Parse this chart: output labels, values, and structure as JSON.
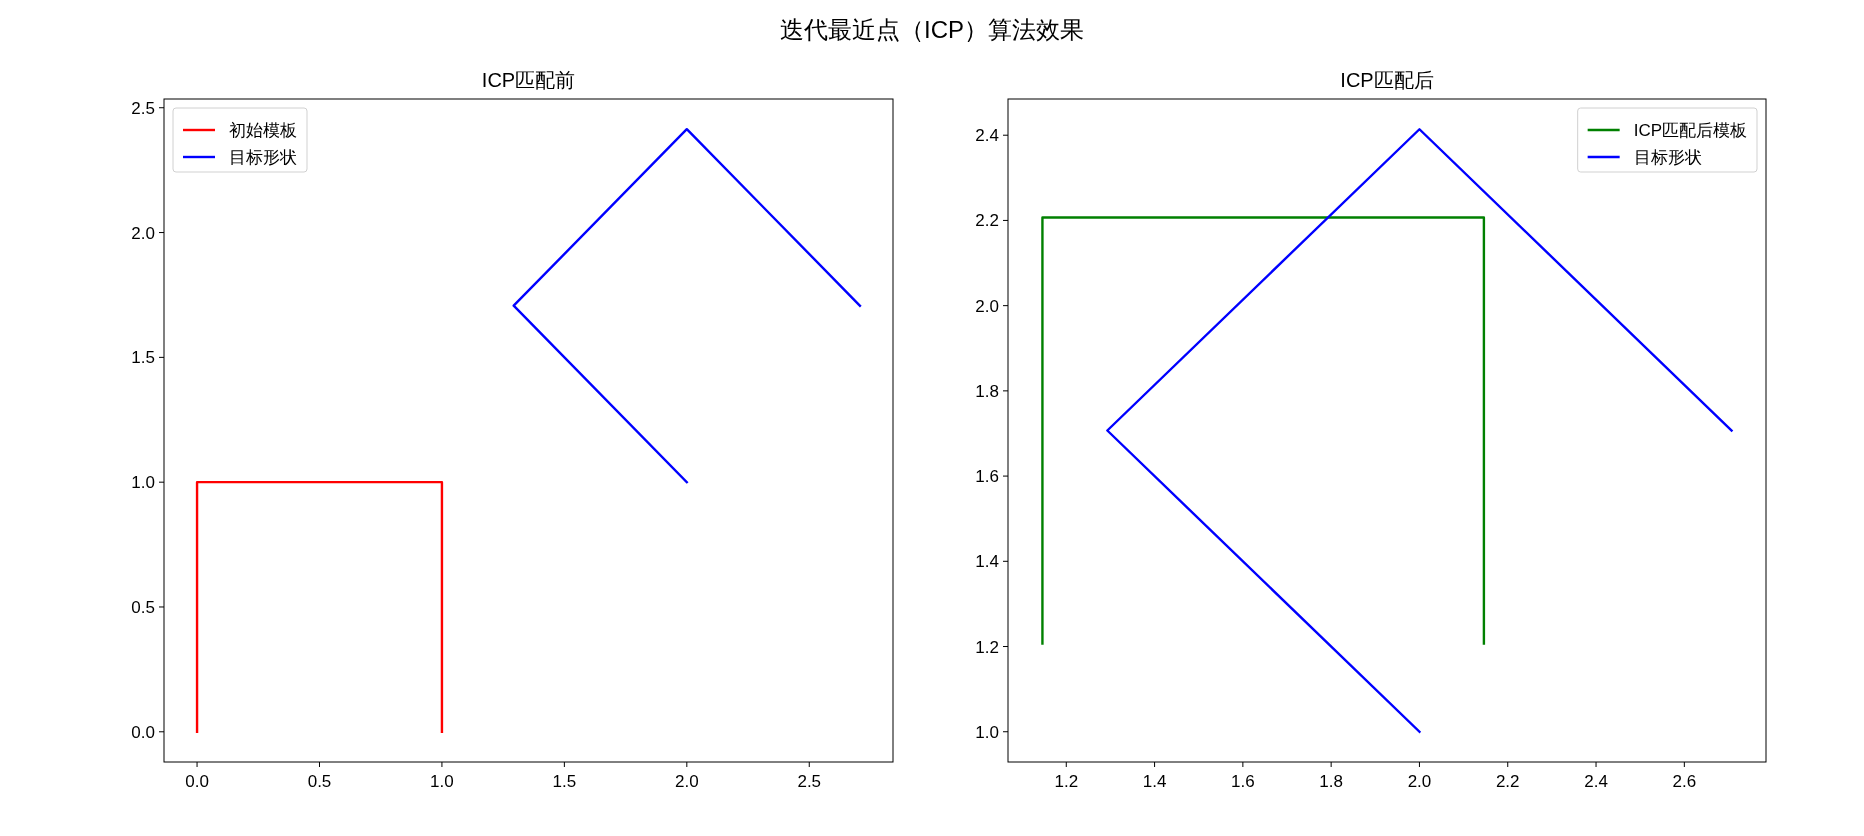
{
  "chart_data": [
    {
      "type": "line",
      "title": "ICP匹配前",
      "annotations": [
        "迭代最近点（ICP）算法效果"
      ],
      "legend": "top left",
      "grid": false,
      "xlim": [
        -0.135,
        2.842
      ],
      "ylim": [
        -0.121,
        2.535
      ],
      "xticks": [
        {
          "value": 0,
          "label": "0.0"
        },
        0.5,
        {
          "value": 1,
          "label": "1.0"
        },
        1.5,
        {
          "value": 2,
          "label": "2.0"
        },
        2.5
      ],
      "yticks": [
        {
          "value": 0,
          "label": "0.0"
        },
        0.5,
        {
          "value": 1,
          "label": "1.0"
        },
        1.5,
        {
          "value": 2,
          "label": "2.0"
        },
        2.5
      ],
      "series": [
        {
          "name": "初始模板",
          "color": "#ff0000",
          "x": [
            0,
            0,
            1,
            1
          ],
          "values": [
            0,
            1,
            1,
            0
          ]
        },
        {
          "name": "目标形状",
          "color": "#0000ff",
          "x": [
            2,
            1.293,
            2,
            2.707
          ],
          "values": [
            1,
            1.707,
            2.414,
            1.707
          ]
        }
      ]
    },
    {
      "type": "line",
      "title": "ICP匹配后",
      "legend": "top right",
      "grid": false,
      "xlim": [
        1.068,
        2.785
      ],
      "ylim": [
        0.929,
        2.485
      ],
      "xticks": [
        1.2,
        1.4,
        1.6,
        1.8,
        {
          "value": 2,
          "label": "2.0"
        },
        2.2,
        2.4,
        2.6
      ],
      "yticks": [
        {
          "value": 1,
          "label": "1.0"
        },
        1.2,
        1.4,
        1.6,
        1.8,
        {
          "value": 2,
          "label": "2.0"
        },
        2.2,
        2.4
      ],
      "series": [
        {
          "name": "ICP匹配后模板",
          "color": "#008000",
          "x": [
            1.146,
            1.146,
            2.146,
            2.146
          ],
          "values": [
            1.207,
            2.207,
            2.207,
            1.207
          ]
        },
        {
          "name": "目标形状",
          "color": "#0000ff",
          "x": [
            2,
            1.293,
            2,
            2.707
          ],
          "values": [
            1,
            1.707,
            2.414,
            1.707
          ]
        }
      ]
    }
  ]
}
